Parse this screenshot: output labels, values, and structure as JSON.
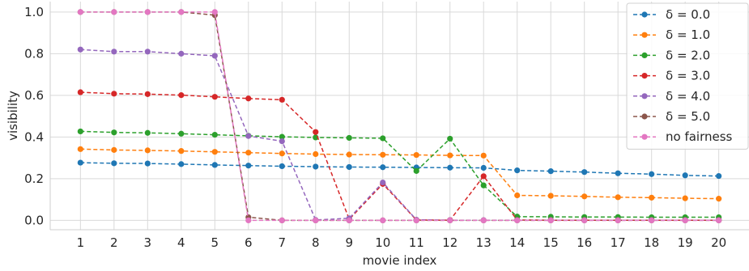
{
  "chart_data": {
    "type": "line",
    "xlabel": "movie index",
    "ylabel": "visibility",
    "x": [
      1,
      2,
      3,
      4,
      5,
      6,
      7,
      8,
      9,
      10,
      11,
      12,
      13,
      14,
      15,
      16,
      17,
      18,
      19,
      20
    ],
    "xlim": [
      0.1,
      20.9
    ],
    "ylim": [
      -0.045,
      1.05
    ],
    "yticks": [
      0.0,
      0.2,
      0.4,
      0.6,
      0.8,
      1.0
    ],
    "ytick_labels": [
      "0.0",
      "0.2",
      "0.4",
      "0.6",
      "0.8",
      "1.0"
    ],
    "xtick_labels": [
      "1",
      "2",
      "3",
      "4",
      "5",
      "6",
      "7",
      "8",
      "9",
      "10",
      "11",
      "12",
      "13",
      "14",
      "15",
      "16",
      "17",
      "18",
      "19",
      "20"
    ],
    "grid": true,
    "legend_position": "top-right",
    "series": [
      {
        "name": "δ = 0.0",
        "color": "#1f77b4",
        "values": [
          0.277,
          0.274,
          0.273,
          0.27,
          0.266,
          0.263,
          0.26,
          0.258,
          0.256,
          0.255,
          0.254,
          0.253,
          0.252,
          0.24,
          0.236,
          0.232,
          0.226,
          0.222,
          0.216,
          0.213
        ]
      },
      {
        "name": "δ = 1.0",
        "color": "#ff7f0e",
        "values": [
          0.342,
          0.338,
          0.336,
          0.333,
          0.329,
          0.325,
          0.321,
          0.318,
          0.316,
          0.315,
          0.314,
          0.312,
          0.311,
          0.12,
          0.118,
          0.115,
          0.111,
          0.109,
          0.106,
          0.104
        ]
      },
      {
        "name": "δ = 2.0",
        "color": "#2ca02c",
        "values": [
          0.427,
          0.422,
          0.42,
          0.416,
          0.411,
          0.406,
          0.401,
          0.398,
          0.396,
          0.394,
          0.237,
          0.392,
          0.168,
          0.018,
          0.017,
          0.016,
          0.016,
          0.015,
          0.015,
          0.015
        ]
      },
      {
        "name": "δ = 3.0",
        "color": "#d62728",
        "values": [
          0.615,
          0.608,
          0.606,
          0.601,
          0.593,
          0.585,
          0.579,
          0.424,
          0.005,
          0.175,
          0.002,
          0.001,
          0.212,
          0.002,
          0.001,
          0.001,
          0.001,
          0.001,
          0.001,
          0.001
        ]
      },
      {
        "name": "δ = 4.0",
        "color": "#9467bd",
        "values": [
          0.82,
          0.81,
          0.81,
          0.8,
          0.79,
          0.405,
          0.38,
          0.002,
          0.01,
          0.182,
          0.003,
          0.001,
          0.001,
          0.001,
          0.001,
          0.001,
          0.001,
          0.001,
          0.001,
          0.001
        ]
      },
      {
        "name": "δ = 5.0",
        "color": "#8c564b",
        "values": [
          1.0,
          1.0,
          1.0,
          1.0,
          0.985,
          0.015,
          0.0,
          0.0,
          0.0,
          0.0,
          0.0,
          0.0,
          0.0,
          0.0,
          0.0,
          0.0,
          0.0,
          0.0,
          0.0,
          0.0
        ]
      },
      {
        "name": "no fairness",
        "color": "#e377c2",
        "values": [
          1.0,
          1.0,
          1.0,
          1.0,
          1.0,
          0.0,
          0.0,
          0.0,
          0.0,
          0.0,
          0.0,
          0.0,
          0.0,
          0.0,
          0.0,
          0.0,
          0.0,
          0.0,
          0.0,
          0.0
        ]
      }
    ]
  }
}
